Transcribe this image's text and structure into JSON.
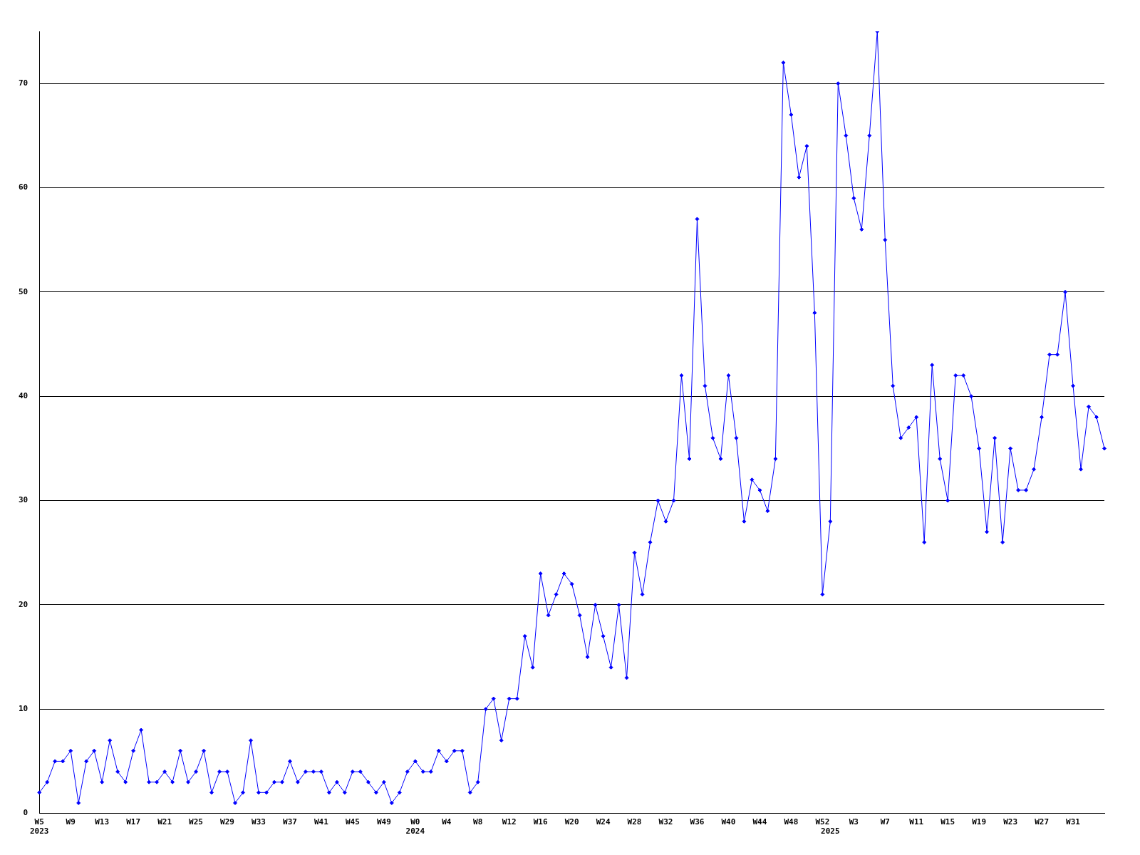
{
  "chart_data": {
    "type": "line",
    "categories": [
      "W5\n2023",
      null,
      null,
      null,
      "W9",
      null,
      null,
      null,
      "W13",
      null,
      null,
      null,
      "W17",
      null,
      null,
      null,
      "W21",
      null,
      null,
      null,
      "W25",
      null,
      null,
      null,
      "W29",
      null,
      null,
      null,
      "W33",
      null,
      null,
      null,
      "W37",
      null,
      null,
      null,
      "W41",
      null,
      null,
      null,
      "W45",
      null,
      null,
      null,
      "W49",
      null,
      null,
      null,
      "W0\n2024",
      null,
      null,
      null,
      "W4",
      null,
      null,
      null,
      "W8",
      null,
      null,
      null,
      "W12",
      null,
      null,
      null,
      "W16",
      null,
      null,
      null,
      "W20",
      null,
      null,
      null,
      "W24",
      null,
      null,
      null,
      "W28",
      null,
      null,
      null,
      "W32",
      null,
      null,
      null,
      "W36",
      null,
      null,
      null,
      "W40",
      null,
      null,
      null,
      "W44",
      null,
      null,
      null,
      "W48",
      null,
      null,
      null,
      "W52",
      "\n2025",
      null,
      null,
      "W3",
      null,
      null,
      null,
      "W7",
      null,
      null,
      null,
      "W11",
      null,
      null,
      null,
      "W15",
      null,
      null,
      null,
      "W19",
      null,
      null,
      null,
      "W23",
      null,
      null,
      null,
      "W27",
      null,
      null,
      null,
      "W31",
      null,
      null,
      null,
      null
    ],
    "series": [
      {
        "color": "#0000ff",
        "values": [
          2,
          3,
          5,
          5,
          6,
          1,
          5,
          6,
          3,
          7,
          4,
          3,
          6,
          8,
          3,
          3,
          4,
          3,
          6,
          3,
          4,
          6,
          2,
          4,
          4,
          1,
          2,
          7,
          2,
          2,
          3,
          3,
          5,
          3,
          4,
          4,
          4,
          2,
          3,
          2,
          4,
          4,
          3,
          2,
          3,
          1,
          2,
          4,
          5,
          4,
          4,
          6,
          5,
          6,
          6,
          2,
          3,
          10,
          11,
          7,
          11,
          11,
          17,
          14,
          23,
          19,
          21,
          23,
          22,
          19,
          15,
          20,
          17,
          14,
          20,
          13,
          25,
          21,
          26,
          30,
          28,
          30,
          42,
          34,
          57,
          41,
          36,
          34,
          42,
          36,
          28,
          32,
          31,
          29,
          34,
          72,
          67,
          61,
          64,
          48,
          21,
          28,
          70,
          65,
          59,
          56,
          65,
          75,
          55,
          41,
          36,
          37,
          38,
          26,
          43,
          34,
          30,
          42,
          42,
          40,
          35,
          27,
          36,
          26,
          35,
          31,
          31,
          33,
          38,
          44,
          44,
          50,
          41,
          33,
          39,
          38,
          35
        ]
      }
    ],
    "ylim": [
      0,
      75
    ],
    "yticks": [
      0,
      10,
      20,
      30,
      40,
      50,
      60,
      70
    ],
    "grid": "y",
    "legend": false,
    "marker": "diamond",
    "line_style": "solid"
  }
}
